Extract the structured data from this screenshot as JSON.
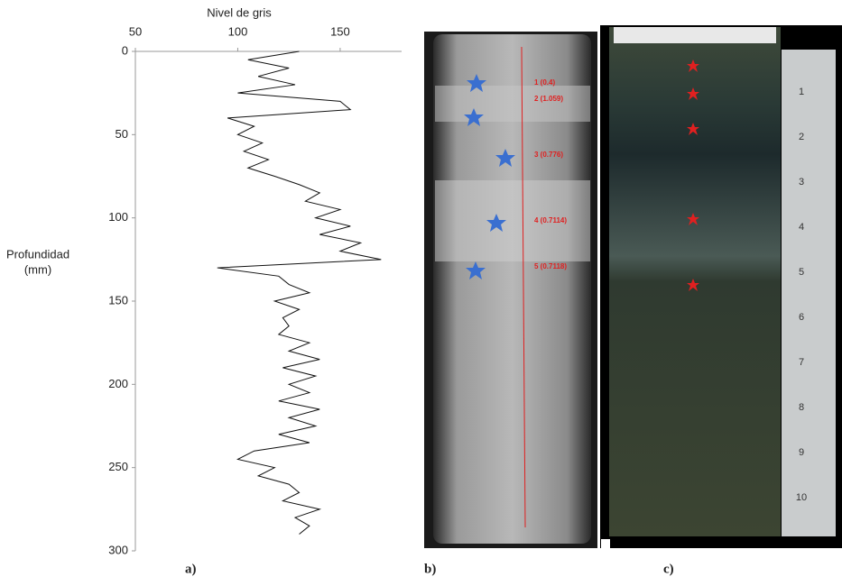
{
  "chart_data": {
    "type": "line",
    "xlabel": "Nivel de gris",
    "ylabel": [
      "Profundidad",
      "(mm)"
    ],
    "xlim": [
      50,
      180
    ],
    "xticks": [
      50,
      100,
      150
    ],
    "ylim": [
      0,
      300
    ],
    "yticks": [
      0,
      50,
      100,
      150,
      200,
      250,
      300
    ],
    "color": "#111111",
    "depth": [
      0,
      5,
      10,
      15,
      20,
      25,
      30,
      35,
      40,
      45,
      50,
      55,
      60,
      65,
      70,
      75,
      80,
      85,
      90,
      95,
      100,
      105,
      110,
      115,
      120,
      125,
      130,
      135,
      140,
      145,
      150,
      155,
      160,
      165,
      170,
      175,
      180,
      185,
      190,
      195,
      200,
      205,
      210,
      215,
      220,
      225,
      230,
      235,
      240,
      245,
      250,
      255,
      260,
      265,
      270,
      275,
      280,
      285,
      290
    ],
    "values": [
      130,
      105,
      125,
      110,
      128,
      100,
      150,
      155,
      95,
      108,
      100,
      112,
      103,
      115,
      105,
      118,
      130,
      140,
      133,
      150,
      138,
      155,
      140,
      160,
      150,
      170,
      90,
      120,
      125,
      135,
      118,
      130,
      122,
      125,
      120,
      135,
      125,
      140,
      122,
      138,
      125,
      135,
      120,
      140,
      125,
      138,
      120,
      135,
      108,
      100,
      118,
      110,
      125,
      130,
      122,
      140,
      128,
      135,
      130
    ]
  },
  "panels": [
    "a)",
    "b)",
    "c)"
  ],
  "photo_b": {
    "annotations": [
      "1 (0.4)",
      "2 (1.059)",
      "3 (0.776)",
      "4 (0.7114)",
      "5 (0.7118)"
    ]
  },
  "ruler": {
    "labels": [
      1,
      2,
      3,
      4,
      5,
      6,
      7,
      8,
      9,
      10
    ]
  }
}
